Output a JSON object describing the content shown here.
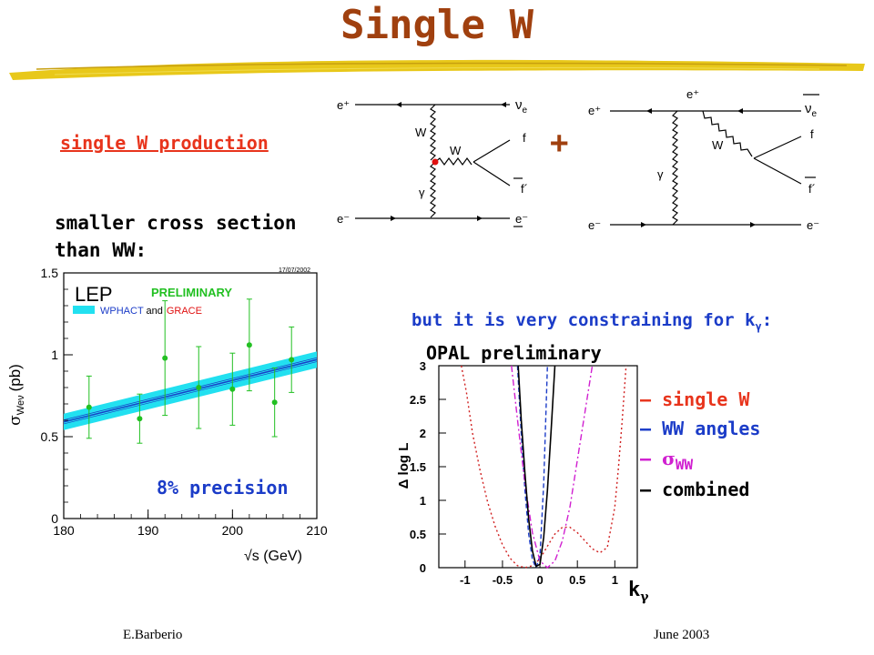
{
  "slide": {
    "title": "Single W",
    "subheading": "single W production",
    "plus": "+",
    "note_line1": "smaller cross section",
    "note_line2": "than WW:",
    "constraint_text": "but it is very constraining for k",
    "constraint_sub": "γ",
    "constraint_end": ":",
    "precision": "8% precision",
    "footer_left": "E.Barberio",
    "footer_right": "June 2003"
  },
  "feynman": {
    "left": {
      "e_in_top": "e⁺",
      "nu_out": "ν",
      "nu_sub": "e",
      "W_vertical": "W",
      "W_horizontal": "W",
      "gamma": "γ",
      "f": "f",
      "fbar": "f´",
      "e_in_bottom": "e⁻",
      "e_out_bottom": "e⁻"
    },
    "right": {
      "e_in_top": "e⁺",
      "e_out_top": "e⁺",
      "nu_out": "ν",
      "nu_sub": "e",
      "W": "W",
      "gamma": "γ",
      "f": "f",
      "fbar": "f´",
      "e_in_bottom": "e⁻",
      "e_out_bottom": "e⁻"
    }
  },
  "chart_data": [
    {
      "type": "scatter",
      "title": "",
      "date": "17/07/2002",
      "experiment": "LEP",
      "tag": "PRELIMINARY",
      "band_label_a": "WPHACT",
      "band_label_and": "and",
      "band_label_b": "GRACE",
      "ylabel": "σ",
      "ylabel_sub": "Weν",
      "ylabel_unit": "(pb)",
      "xlabel": "√s (GeV)",
      "xlim": [
        180,
        210
      ],
      "ylim": [
        0,
        1.5
      ],
      "xticks": [
        "180",
        "190",
        "200",
        "210"
      ],
      "yticks": [
        "0",
        "0.5",
        "1",
        "1.5"
      ],
      "x": [
        183,
        189,
        192,
        196,
        200,
        202,
        205,
        207
      ],
      "y": [
        0.68,
        0.61,
        0.98,
        0.8,
        0.79,
        1.06,
        0.71,
        0.97
      ],
      "yerr": [
        0.19,
        0.15,
        0.35,
        0.25,
        0.22,
        0.28,
        0.21,
        0.2
      ],
      "prediction": {
        "x": [
          180,
          210
        ],
        "y": [
          0.59,
          0.97
        ],
        "band_halfwidth": 0.05
      },
      "colors": {
        "points": "#22c022",
        "band": "#22e0f0",
        "line": "#1b3cc8",
        "tag": "#22c022",
        "grace": "#e01010"
      }
    },
    {
      "type": "line",
      "title": "OPAL preliminary",
      "ylabel": "Δ log L",
      "xlabel": "k",
      "xlabel_sub": "γ",
      "xlim": [
        -1.35,
        1.3
      ],
      "ylim": [
        0,
        3
      ],
      "xticks": [
        "-1",
        "-0.5",
        "0",
        "0.5",
        "1"
      ],
      "xtick_values": [
        -1,
        -0.5,
        0,
        0.5,
        1
      ],
      "yticks": [
        "0",
        "0.5",
        "1",
        "1.5",
        "2",
        "2.5",
        "3"
      ],
      "series": [
        {
          "name": "single W",
          "color": "#d02020",
          "dash": "2,3",
          "x": [
            -1.05,
            -0.98,
            -0.9,
            -0.8,
            -0.7,
            -0.6,
            -0.5,
            -0.4,
            -0.3,
            -0.2,
            -0.1,
            0.0,
            0.1,
            0.2,
            0.3,
            0.4,
            0.5,
            0.6,
            0.7,
            0.8,
            0.9,
            1.0,
            1.05,
            1.1,
            1.15
          ],
          "y": [
            3.0,
            2.6,
            2.0,
            1.45,
            0.98,
            0.62,
            0.34,
            0.14,
            0.03,
            0.0,
            0.03,
            0.13,
            0.32,
            0.5,
            0.6,
            0.6,
            0.52,
            0.4,
            0.28,
            0.22,
            0.3,
            0.9,
            1.5,
            2.2,
            3.0
          ]
        },
        {
          "name": "WW angles",
          "color": "#1b3cc8",
          "dash": "5,3",
          "x": [
            -0.3,
            -0.25,
            -0.2,
            -0.15,
            -0.1,
            -0.05,
            0.0,
            0.05,
            0.1
          ],
          "y": [
            3.0,
            2.0,
            1.15,
            0.5,
            0.12,
            0.0,
            0.18,
            1.25,
            3.0
          ]
        },
        {
          "name": "σ",
          "name_sub": "WW",
          "color": "#d020d0",
          "dash": "7,3,2,3",
          "x": [
            -0.38,
            -0.3,
            -0.2,
            -0.1,
            0.0,
            0.1,
            0.2,
            0.3,
            0.4,
            0.5,
            0.6,
            0.7
          ],
          "y": [
            3.0,
            2.2,
            1.25,
            0.52,
            0.1,
            0.0,
            0.1,
            0.4,
            0.9,
            1.6,
            2.3,
            3.0
          ]
        },
        {
          "name": "combined",
          "color": "#000000",
          "dash": "",
          "x": [
            -0.29,
            -0.25,
            -0.2,
            -0.15,
            -0.1,
            -0.05,
            0.0,
            0.05,
            0.1,
            0.15,
            0.2
          ],
          "y": [
            3.0,
            2.2,
            1.4,
            0.72,
            0.25,
            0.02,
            0.05,
            0.45,
            1.15,
            2.05,
            3.0
          ]
        }
      ]
    }
  ]
}
